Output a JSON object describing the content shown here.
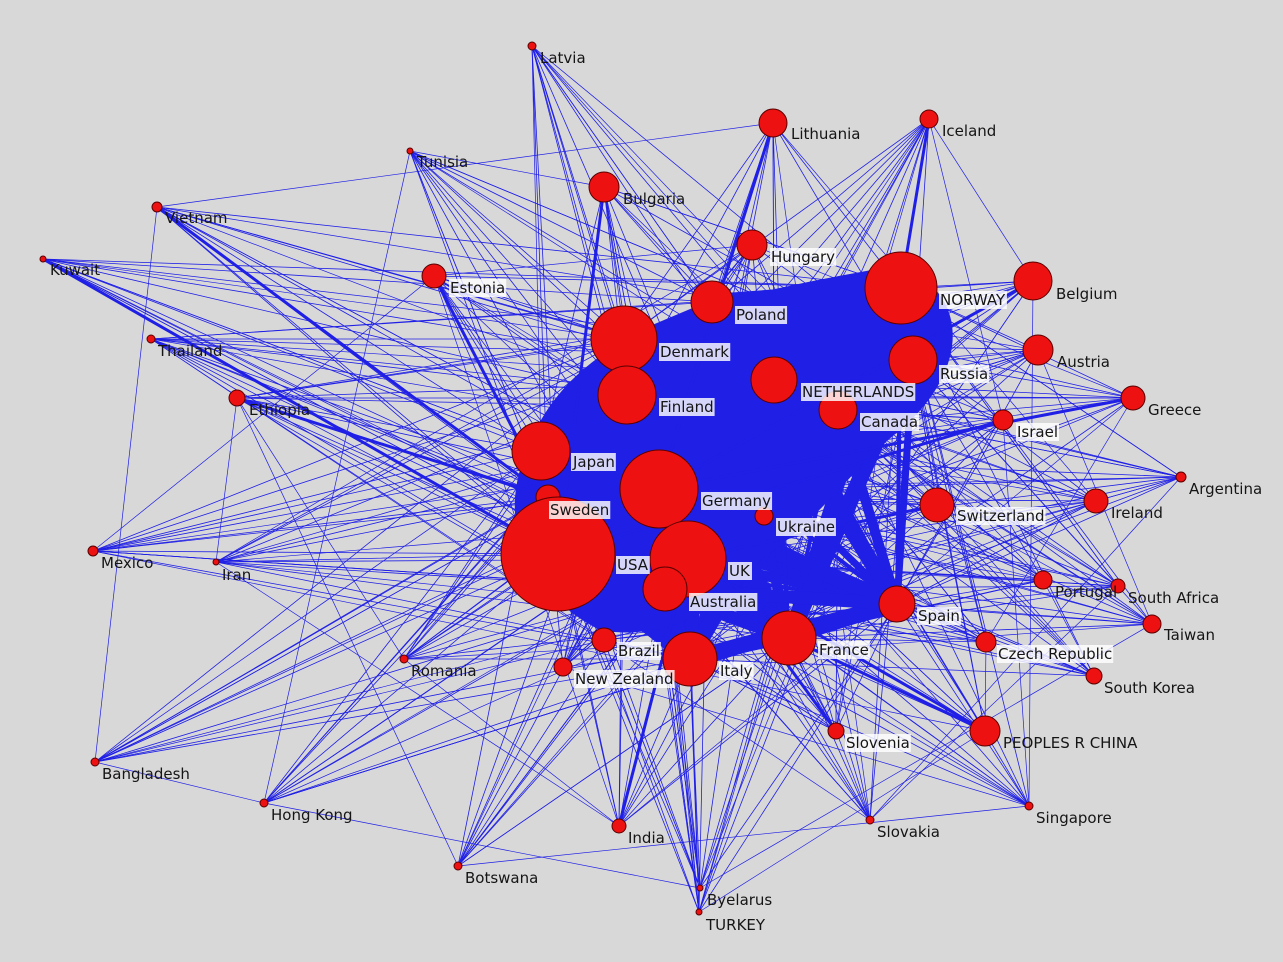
{
  "colors": {
    "background": "#d8d8d8",
    "edge": "#1f1fe6",
    "node": "#ee1111",
    "node_border": "#5a0000",
    "label": "#151515"
  },
  "nodes": [
    {
      "id": "latvia",
      "label": "Latvia"
    },
    {
      "id": "lithuania",
      "label": "Lithuania"
    },
    {
      "id": "iceland",
      "label": "Iceland"
    },
    {
      "id": "tunisia",
      "label": "Tunisia"
    },
    {
      "id": "bulgaria",
      "label": "Bulgaria"
    },
    {
      "id": "vietnam",
      "label": "Vietnam"
    },
    {
      "id": "hungary",
      "label": "Hungary"
    },
    {
      "id": "kuwait",
      "label": "Kuwait"
    },
    {
      "id": "estonia",
      "label": "Estonia"
    },
    {
      "id": "norway",
      "label": "NORWAY"
    },
    {
      "id": "belgium",
      "label": "Belgium"
    },
    {
      "id": "poland",
      "label": "Poland"
    },
    {
      "id": "thailand",
      "label": "Thailand"
    },
    {
      "id": "denmark",
      "label": "Denmark"
    },
    {
      "id": "austria",
      "label": "Austria"
    },
    {
      "id": "russia",
      "label": "Russia"
    },
    {
      "id": "netherlands",
      "label": "NETHERLANDS"
    },
    {
      "id": "ethiopia",
      "label": "Ethiopia"
    },
    {
      "id": "finland",
      "label": "Finland"
    },
    {
      "id": "greece",
      "label": "Greece"
    },
    {
      "id": "canada",
      "label": "Canada"
    },
    {
      "id": "israel",
      "label": "Israel"
    },
    {
      "id": "japan",
      "label": "Japan"
    },
    {
      "id": "argentina",
      "label": "Argentina"
    },
    {
      "id": "germany",
      "label": "Germany"
    },
    {
      "id": "switzerland",
      "label": "Switzerland"
    },
    {
      "id": "sweden",
      "label": "Sweden"
    },
    {
      "id": "ireland",
      "label": "Ireland"
    },
    {
      "id": "ukraine",
      "label": "Ukraine"
    },
    {
      "id": "mexico",
      "label": "Mexico"
    },
    {
      "id": "iran",
      "label": "Iran"
    },
    {
      "id": "usa",
      "label": "USA"
    },
    {
      "id": "uk",
      "label": "UK"
    },
    {
      "id": "portugal",
      "label": "Portugal"
    },
    {
      "id": "south_africa",
      "label": "South Africa"
    },
    {
      "id": "australia",
      "label": "Australia"
    },
    {
      "id": "spain",
      "label": "Spain"
    },
    {
      "id": "taiwan",
      "label": "Taiwan"
    },
    {
      "id": "brazil",
      "label": "Brazil"
    },
    {
      "id": "france",
      "label": "France"
    },
    {
      "id": "czech",
      "label": "Czech Republic"
    },
    {
      "id": "romania",
      "label": "Romania"
    },
    {
      "id": "italy",
      "label": "Italy"
    },
    {
      "id": "new_zealand",
      "label": "New Zealand"
    },
    {
      "id": "south_korea",
      "label": "South Korea"
    },
    {
      "id": "slovenia",
      "label": "Slovenia"
    },
    {
      "id": "china",
      "label": "PEOPLES R CHINA"
    },
    {
      "id": "bangladesh",
      "label": "Bangladesh"
    },
    {
      "id": "hong_kong",
      "label": "Hong Kong"
    },
    {
      "id": "slovakia",
      "label": "Slovakia"
    },
    {
      "id": "singapore",
      "label": "Singapore"
    },
    {
      "id": "india",
      "label": "India"
    },
    {
      "id": "botswana",
      "label": "Botswana"
    },
    {
      "id": "byelarus",
      "label": "Byelarus"
    },
    {
      "id": "turkey",
      "label": "TURKEY"
    }
  ]
}
